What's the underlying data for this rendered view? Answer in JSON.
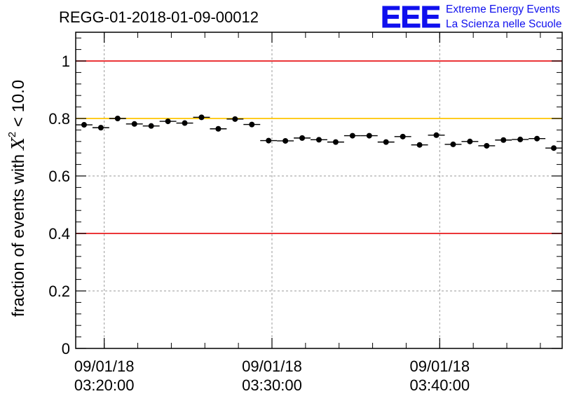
{
  "chart_data": {
    "type": "scatter",
    "title": "REGG-01-2018-01-09-00012",
    "ylabel": {
      "prefix": "fraction of events with ",
      "symbol": "X",
      "superscript": "2",
      "suffix": " < 10.0"
    },
    "xlabel": "",
    "ylim": [
      0,
      1.1
    ],
    "xlim_minutes": [
      0,
      29
    ],
    "y_ticks": [
      "0",
      "0.2",
      "0.4",
      "0.6",
      "0.8",
      "1"
    ],
    "x_ticks": [
      {
        "minute": 1.7,
        "date": "09/01/18",
        "time": "03:20:00"
      },
      {
        "minute": 11.7,
        "date": "09/01/18",
        "time": "03:30:00"
      },
      {
        "minute": 21.7,
        "date": "09/01/18",
        "time": "03:40:00"
      }
    ],
    "minor_x_ticks_minutes": [
      1.7,
      3.7,
      5.7,
      7.7,
      9.7,
      11.7,
      13.7,
      15.7,
      17.7,
      19.7,
      21.7,
      23.7,
      25.7,
      27.7
    ],
    "grid": true,
    "reference_lines": [
      {
        "y": 1.0,
        "color": "#e8191d"
      },
      {
        "y": 0.8,
        "color": "#ffc400"
      },
      {
        "y": 0.4,
        "color": "#e8191d"
      }
    ],
    "points": [
      {
        "x": 0.5,
        "y": 0.778
      },
      {
        "x": 1.5,
        "y": 0.768
      },
      {
        "x": 2.5,
        "y": 0.8
      },
      {
        "x": 3.5,
        "y": 0.781
      },
      {
        "x": 4.5,
        "y": 0.774
      },
      {
        "x": 5.5,
        "y": 0.79
      },
      {
        "x": 6.5,
        "y": 0.784
      },
      {
        "x": 7.5,
        "y": 0.804
      },
      {
        "x": 8.5,
        "y": 0.764
      },
      {
        "x": 9.5,
        "y": 0.798
      },
      {
        "x": 10.5,
        "y": 0.779
      },
      {
        "x": 11.5,
        "y": 0.723
      },
      {
        "x": 12.5,
        "y": 0.722
      },
      {
        "x": 13.5,
        "y": 0.732
      },
      {
        "x": 14.5,
        "y": 0.726
      },
      {
        "x": 15.5,
        "y": 0.718
      },
      {
        "x": 16.5,
        "y": 0.74
      },
      {
        "x": 17.5,
        "y": 0.74
      },
      {
        "x": 18.5,
        "y": 0.718
      },
      {
        "x": 19.5,
        "y": 0.737
      },
      {
        "x": 20.5,
        "y": 0.708
      },
      {
        "x": 21.5,
        "y": 0.742
      },
      {
        "x": 22.5,
        "y": 0.71
      },
      {
        "x": 23.5,
        "y": 0.72
      },
      {
        "x": 24.5,
        "y": 0.705
      },
      {
        "x": 25.5,
        "y": 0.725
      },
      {
        "x": 26.5,
        "y": 0.727
      },
      {
        "x": 27.5,
        "y": 0.73
      },
      {
        "x": 28.5,
        "y": 0.697
      }
    ],
    "error_bar": 0.007
  },
  "logo": {
    "mark": "EEE",
    "line1": "Extreme Energy Events",
    "line2": "La Scienza nelle Scuole",
    "color": "#1010ee"
  }
}
